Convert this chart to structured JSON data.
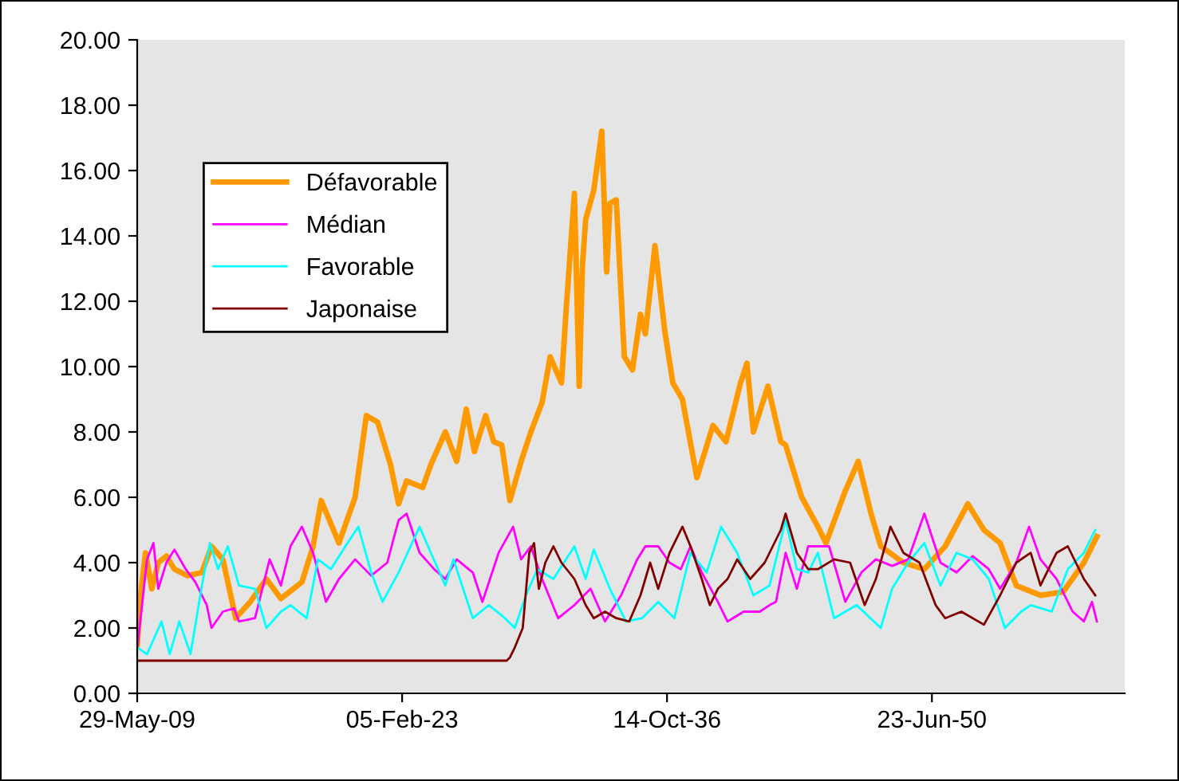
{
  "chart_data": {
    "type": "line",
    "xlim": [
      "2009-05-29",
      "2060-06-10"
    ],
    "xticks": [
      {
        "value": "2009-05-29",
        "label": "29-May-09"
      },
      {
        "value": "2023-02-05",
        "label": "05-Feb-23"
      },
      {
        "value": "2036-10-14",
        "label": "14-Oct-36"
      },
      {
        "value": "2050-06-23",
        "label": "23-Jun-50"
      }
    ],
    "ylim": [
      0,
      20
    ],
    "yticks": [
      {
        "value": 0,
        "label": "0.00"
      },
      {
        "value": 2,
        "label": "2.00"
      },
      {
        "value": 4,
        "label": "4.00"
      },
      {
        "value": 6,
        "label": "6.00"
      },
      {
        "value": 8,
        "label": "8.00"
      },
      {
        "value": 10,
        "label": "10.00"
      },
      {
        "value": 12,
        "label": "12.00"
      },
      {
        "value": 14,
        "label": "14.00"
      },
      {
        "value": 16,
        "label": "16.00"
      },
      {
        "value": 18,
        "label": "18.00"
      },
      {
        "value": 20,
        "label": "20.00"
      }
    ],
    "grid": false,
    "legend": "top left",
    "marker": "none",
    "line_style": "solid",
    "series": [
      {
        "name": "Défavorable",
        "color": "#ff9900",
        "x": [
          "2009-06",
          "2009-08",
          "2009-11",
          "2010-03",
          "2010-07",
          "2010-12",
          "2011-05",
          "2012-01",
          "2012-10",
          "2013-04",
          "2013-11",
          "2014-07",
          "2015-04",
          "2016-02",
          "2016-11",
          "2017-12",
          "2018-07",
          "2018-12",
          "2019-11",
          "2020-09",
          "2021-04",
          "2021-11",
          "2022-07",
          "2022-12",
          "2023-05",
          "2024-03",
          "2024-08",
          "2025-05",
          "2025-12",
          "2026-06",
          "2026-11",
          "2027-06",
          "2027-11",
          "2028-04",
          "2028-09",
          "2029-04",
          "2029-10",
          "2030-05",
          "2030-10",
          "2031-05",
          "2031-08",
          "2032-01",
          "2032-04",
          "2032-06",
          "2032-08",
          "2033-01",
          "2033-06",
          "2033-09",
          "2033-11",
          "2034-03",
          "2034-08",
          "2035-01",
          "2035-06",
          "2035-09",
          "2036-03",
          "2036-09",
          "2037-02",
          "2037-08",
          "2038-05",
          "2039-03",
          "2039-11",
          "2040-08",
          "2040-12",
          "2041-04",
          "2042-01",
          "2042-09",
          "2042-12",
          "2043-10",
          "2044-08",
          "2045-01",
          "2046-01",
          "2046-09",
          "2047-05",
          "2047-11",
          "2049-01",
          "2050-02",
          "2051-03",
          "2052-05",
          "2053-03",
          "2054-01",
          "2054-11",
          "2056-02",
          "2057-04",
          "2058-05",
          "2059-01"
        ],
        "values": [
          1.5,
          3.0,
          4.3,
          3.2,
          4.0,
          4.2,
          3.8,
          3.6,
          3.7,
          4.5,
          4.1,
          2.3,
          2.8,
          3.5,
          2.9,
          3.4,
          4.5,
          5.9,
          4.6,
          6.0,
          8.5,
          8.3,
          7.0,
          5.8,
          6.5,
          6.3,
          7.0,
          8.0,
          7.1,
          8.7,
          7.4,
          8.5,
          7.7,
          7.6,
          5.9,
          7.1,
          8.0,
          8.9,
          10.3,
          9.5,
          11.8,
          15.3,
          9.4,
          13.1,
          14.5,
          15.4,
          17.2,
          12.9,
          15.0,
          15.1,
          10.3,
          9.9,
          11.6,
          11.0,
          13.7,
          11.1,
          9.5,
          9.0,
          6.6,
          8.2,
          7.7,
          9.5,
          10.1,
          8.0,
          9.4,
          7.7,
          7.6,
          6.0,
          5.1,
          4.6,
          6.2,
          7.1,
          5.5,
          4.5,
          4.0,
          3.8,
          4.5,
          5.8,
          5.0,
          4.6,
          3.3,
          3.0,
          3.1,
          4.0,
          4.8
        ]
      },
      {
        "name": "Médian",
        "color": "#ff00ff",
        "x": [
          "2009-06",
          "2009-12",
          "2010-04",
          "2010-07",
          "2010-12",
          "2011-05",
          "2011-12",
          "2012-06",
          "2013-01",
          "2013-04",
          "2013-11",
          "2014-06",
          "2014-09",
          "2015-07",
          "2016-04",
          "2016-11",
          "2017-05",
          "2017-12",
          "2018-07",
          "2019-03",
          "2019-11",
          "2020-09",
          "2021-07",
          "2022-05",
          "2022-12",
          "2023-05",
          "2024-01",
          "2024-10",
          "2025-05",
          "2025-12",
          "2026-10",
          "2027-04",
          "2028-02",
          "2028-11",
          "2029-04",
          "2029-10",
          "2030-05",
          "2031-03",
          "2032-01",
          "2032-11",
          "2033-08",
          "2034-06",
          "2035-04",
          "2035-09",
          "2036-05",
          "2036-12",
          "2037-07",
          "2038-01",
          "2038-08",
          "2039-06",
          "2039-12",
          "2040-10",
          "2041-08",
          "2042-02",
          "2042-06",
          "2042-12",
          "2043-07",
          "2044-02",
          "2045-03",
          "2046-01",
          "2046-11",
          "2047-08",
          "2048-06",
          "2049-04",
          "2050-02",
          "2050-12",
          "2051-10",
          "2052-08",
          "2053-06",
          "2054-01",
          "2054-11",
          "2055-07",
          "2056-02",
          "2056-12",
          "2057-10",
          "2058-05",
          "2058-10",
          "2059-01"
        ],
        "values": [
          1.4,
          4.1,
          4.6,
          3.2,
          4.0,
          4.4,
          3.8,
          3.4,
          2.7,
          2.0,
          2.5,
          2.6,
          2.2,
          2.3,
          4.1,
          3.3,
          4.5,
          5.1,
          4.3,
          2.8,
          3.5,
          4.1,
          3.6,
          4.0,
          5.3,
          5.5,
          4.3,
          3.8,
          3.5,
          4.1,
          3.7,
          2.8,
          4.3,
          5.1,
          4.1,
          4.5,
          3.5,
          2.3,
          2.7,
          3.2,
          2.2,
          3.0,
          4.1,
          4.5,
          4.5,
          4.0,
          3.8,
          4.5,
          3.7,
          2.8,
          2.2,
          2.5,
          2.5,
          2.7,
          2.8,
          4.3,
          3.2,
          4.5,
          4.5,
          2.8,
          3.7,
          4.1,
          3.9,
          4.1,
          5.5,
          4.0,
          3.7,
          4.2,
          3.8,
          3.2,
          4.0,
          5.1,
          4.1,
          3.5,
          2.5,
          2.2,
          2.8,
          2.2
        ]
      },
      {
        "name": "Favorable",
        "color": "#00ffff",
        "x": [
          "2009-06",
          "2009-12",
          "2010-09",
          "2011-02",
          "2011-08",
          "2012-03",
          "2012-10",
          "2013-03",
          "2013-08",
          "2014-02",
          "2014-09",
          "2015-07",
          "2016-02",
          "2016-11",
          "2017-05",
          "2018-03",
          "2018-10",
          "2019-06",
          "2020-03",
          "2020-11",
          "2021-07",
          "2022-02",
          "2022-12",
          "2024-01",
          "2024-08",
          "2025-05",
          "2025-10",
          "2026-10",
          "2027-08",
          "2028-06",
          "2028-12",
          "2029-07",
          "2030-02",
          "2030-12",
          "2032-01",
          "2032-08",
          "2033-01",
          "2033-11",
          "2034-09",
          "2035-07",
          "2036-05",
          "2037-03",
          "2038-01",
          "2038-11",
          "2039-08",
          "2040-06",
          "2041-04",
          "2042-02",
          "2042-12",
          "2043-07",
          "2044-02",
          "2044-08",
          "2045-06",
          "2046-08",
          "2047-11",
          "2048-06",
          "2049-04",
          "2050-02",
          "2050-12",
          "2051-10",
          "2052-08",
          "2053-06",
          "2054-04",
          "2055-02",
          "2055-08",
          "2056-09",
          "2057-07",
          "2058-05",
          "2058-12"
        ],
        "values": [
          1.4,
          1.2,
          2.2,
          1.2,
          2.2,
          1.2,
          3.3,
          4.6,
          3.8,
          4.5,
          3.3,
          3.2,
          2.0,
          2.5,
          2.7,
          2.3,
          4.1,
          3.8,
          4.5,
          5.1,
          3.7,
          2.8,
          3.7,
          5.1,
          4.3,
          3.3,
          4.1,
          2.3,
          2.7,
          2.3,
          2.0,
          3.0,
          3.8,
          3.5,
          4.5,
          3.5,
          4.4,
          3.2,
          2.2,
          2.3,
          2.8,
          2.3,
          4.3,
          3.7,
          5.1,
          4.3,
          3.0,
          3.3,
          5.3,
          3.8,
          3.7,
          4.3,
          2.3,
          2.7,
          2.0,
          3.2,
          4.0,
          4.6,
          3.3,
          4.3,
          4.1,
          3.5,
          2.0,
          2.5,
          2.7,
          2.5,
          3.8,
          4.3,
          5.0
        ]
      },
      {
        "name": "Japonaise",
        "color": "#800000",
        "x": [
          "2009-06",
          "2028-07",
          "2028-09",
          "2028-12",
          "2029-05",
          "2029-09",
          "2029-12",
          "2030-03",
          "2030-07",
          "2030-12",
          "2031-05",
          "2032-01",
          "2032-08",
          "2033-01",
          "2033-08",
          "2034-03",
          "2034-11",
          "2035-06",
          "2035-12",
          "2036-05",
          "2036-12",
          "2037-08",
          "2038-01",
          "2038-08",
          "2039-01",
          "2039-06",
          "2039-12",
          "2040-06",
          "2041-02",
          "2041-11",
          "2042-09",
          "2042-12",
          "2043-07",
          "2044-02",
          "2044-08",
          "2045-06",
          "2046-04",
          "2047-01",
          "2047-08",
          "2048-05",
          "2049-01",
          "2049-11",
          "2050-09",
          "2051-03",
          "2052-01",
          "2053-03",
          "2054-01",
          "2054-11",
          "2055-08",
          "2056-02",
          "2056-12",
          "2057-07",
          "2058-05",
          "2058-12"
        ],
        "values": [
          1.0,
          1.0,
          1.1,
          1.4,
          2.0,
          4.3,
          4.6,
          3.2,
          4.0,
          4.5,
          4.0,
          3.5,
          2.7,
          2.3,
          2.5,
          2.3,
          2.2,
          3.0,
          4.0,
          3.2,
          4.3,
          5.1,
          4.5,
          3.5,
          2.7,
          3.2,
          3.5,
          4.1,
          3.5,
          4.0,
          5.0,
          5.5,
          4.3,
          3.8,
          3.8,
          4.1,
          4.0,
          2.7,
          3.5,
          5.1,
          4.3,
          4.0,
          2.7,
          2.3,
          2.5,
          2.1,
          3.0,
          4.0,
          4.3,
          3.3,
          4.3,
          4.5,
          3.5,
          3.0
        ]
      }
    ]
  }
}
